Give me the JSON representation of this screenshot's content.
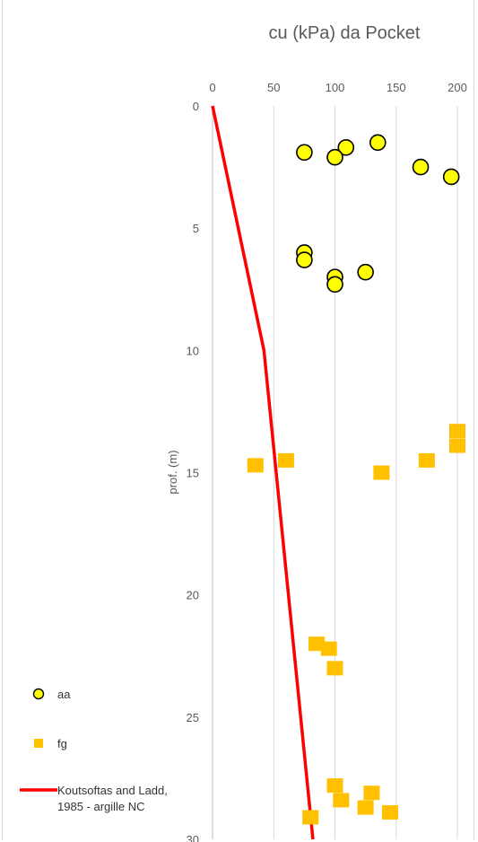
{
  "chart_data": {
    "type": "scatter",
    "title": "cu (kPa) da Pocket",
    "xlabel": "",
    "ylabel": "prof. (m)",
    "xlim": [
      0,
      200
    ],
    "ylim": [
      30,
      0
    ],
    "y_axis_inverted": true,
    "x_axis_position": "top",
    "x_ticks": [
      "0",
      "50",
      "100",
      "150",
      "200"
    ],
    "y_ticks": [
      "0",
      "5",
      "10",
      "15",
      "20",
      "25",
      "30"
    ],
    "grid": "vertical",
    "legend_position": "bottom-left",
    "series": [
      {
        "name": "aa",
        "marker": "circle",
        "color": "#FFFF00",
        "edge_color": "#000000",
        "points": [
          {
            "x": 135,
            "y": 1.5
          },
          {
            "x": 109,
            "y": 1.7
          },
          {
            "x": 75,
            "y": 1.9
          },
          {
            "x": 100,
            "y": 2.1
          },
          {
            "x": 170,
            "y": 2.5
          },
          {
            "x": 195,
            "y": 2.9
          },
          {
            "x": 75,
            "y": 6.0
          },
          {
            "x": 75,
            "y": 6.3
          },
          {
            "x": 125,
            "y": 6.8
          },
          {
            "x": 100,
            "y": 7.0
          },
          {
            "x": 100,
            "y": 7.3
          }
        ]
      },
      {
        "name": "fg",
        "marker": "square",
        "color": "#FFC000",
        "points": [
          {
            "x": 200,
            "y": 13.3
          },
          {
            "x": 200,
            "y": 13.9
          },
          {
            "x": 175,
            "y": 14.5
          },
          {
            "x": 60,
            "y": 14.5
          },
          {
            "x": 35,
            "y": 14.7
          },
          {
            "x": 138,
            "y": 15.0
          },
          {
            "x": 85,
            "y": 22.0
          },
          {
            "x": 95,
            "y": 22.2
          },
          {
            "x": 100,
            "y": 23.0
          },
          {
            "x": 100,
            "y": 27.8
          },
          {
            "x": 105,
            "y": 28.4
          },
          {
            "x": 130,
            "y": 28.1
          },
          {
            "x": 125,
            "y": 28.7
          },
          {
            "x": 145,
            "y": 28.9
          },
          {
            "x": 80,
            "y": 29.1
          }
        ]
      },
      {
        "name": "Koutsoftas and Ladd, 1985 - argille NC",
        "line": true,
        "color": "#FF0000",
        "points": [
          {
            "x": 0,
            "y": 0
          },
          {
            "x": 42,
            "y": 10
          },
          {
            "x": 82,
            "y": 30
          }
        ]
      }
    ]
  }
}
